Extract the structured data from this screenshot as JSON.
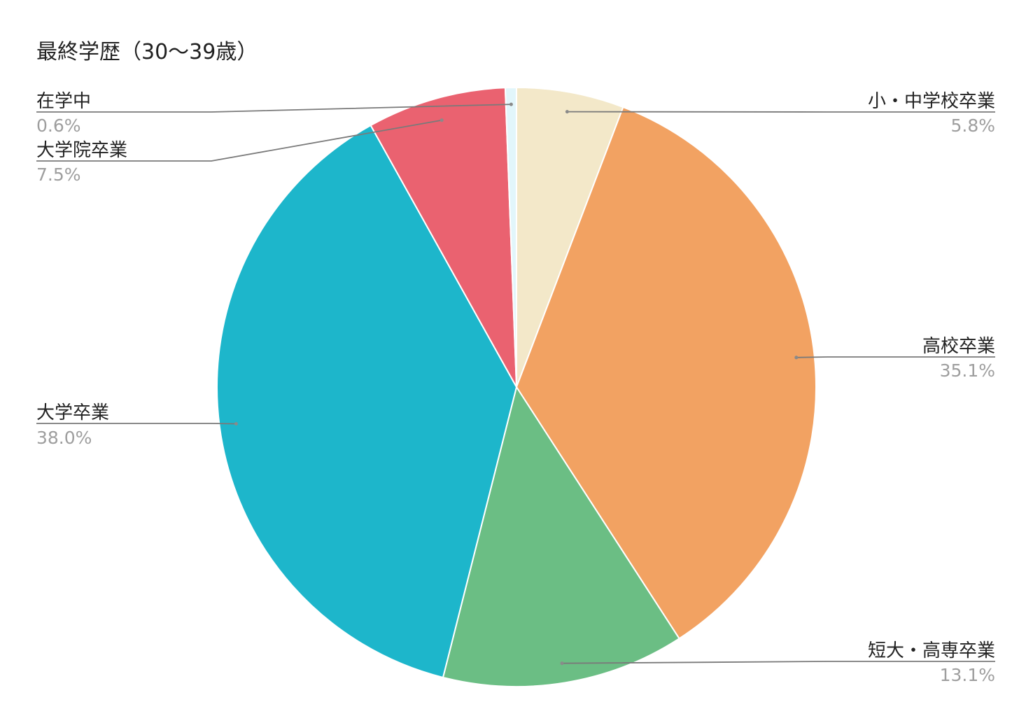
{
  "chart_data": {
    "type": "pie",
    "title": "最終学歴（30〜39歳）",
    "slices": [
      {
        "label": "小・中学校卒業",
        "value": 5.8,
        "value_label": "5.8%",
        "color": "#f3e8c9"
      },
      {
        "label": "高校卒業",
        "value": 35.1,
        "value_label": "35.1%",
        "color": "#f2a262"
      },
      {
        "label": "短大・高専卒業",
        "value": 13.1,
        "value_label": "13.1%",
        "color": "#6bbe84"
      },
      {
        "label": "大学卒業",
        "value": 38.0,
        "value_label": "38.0%",
        "color": "#1db6cb"
      },
      {
        "label": "大学院卒業",
        "value": 7.5,
        "value_label": "7.5%",
        "color": "#ea6270"
      },
      {
        "label": "在学中",
        "value": 0.6,
        "value_label": "0.6%",
        "color": "#e2f6fb"
      }
    ],
    "start_angle": "12 o'clock",
    "direction": "clockwise",
    "label_style": "leader lines with category name and percentage"
  }
}
